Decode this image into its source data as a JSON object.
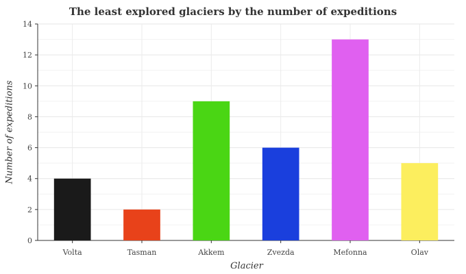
{
  "chart_data": {
    "type": "bar",
    "title": "The least explored glaciers by the number of expeditions",
    "xlabel": "Glacier",
    "ylabel": "Number of expeditions",
    "categories": [
      "Volta",
      "Tasman",
      "Akkem",
      "Zvezda",
      "Mefonna",
      "Olav"
    ],
    "values": [
      4,
      2,
      9,
      6,
      13,
      5
    ],
    "colors": [
      "#1a1a1a",
      "#e8421a",
      "#4ad614",
      "#1a3fdd",
      "#e060f0",
      "#fcee5e"
    ],
    "ylim": [
      0,
      14
    ],
    "yticks": [
      0,
      2,
      4,
      6,
      8,
      10,
      12,
      14
    ],
    "grid": true,
    "legend": "none"
  }
}
